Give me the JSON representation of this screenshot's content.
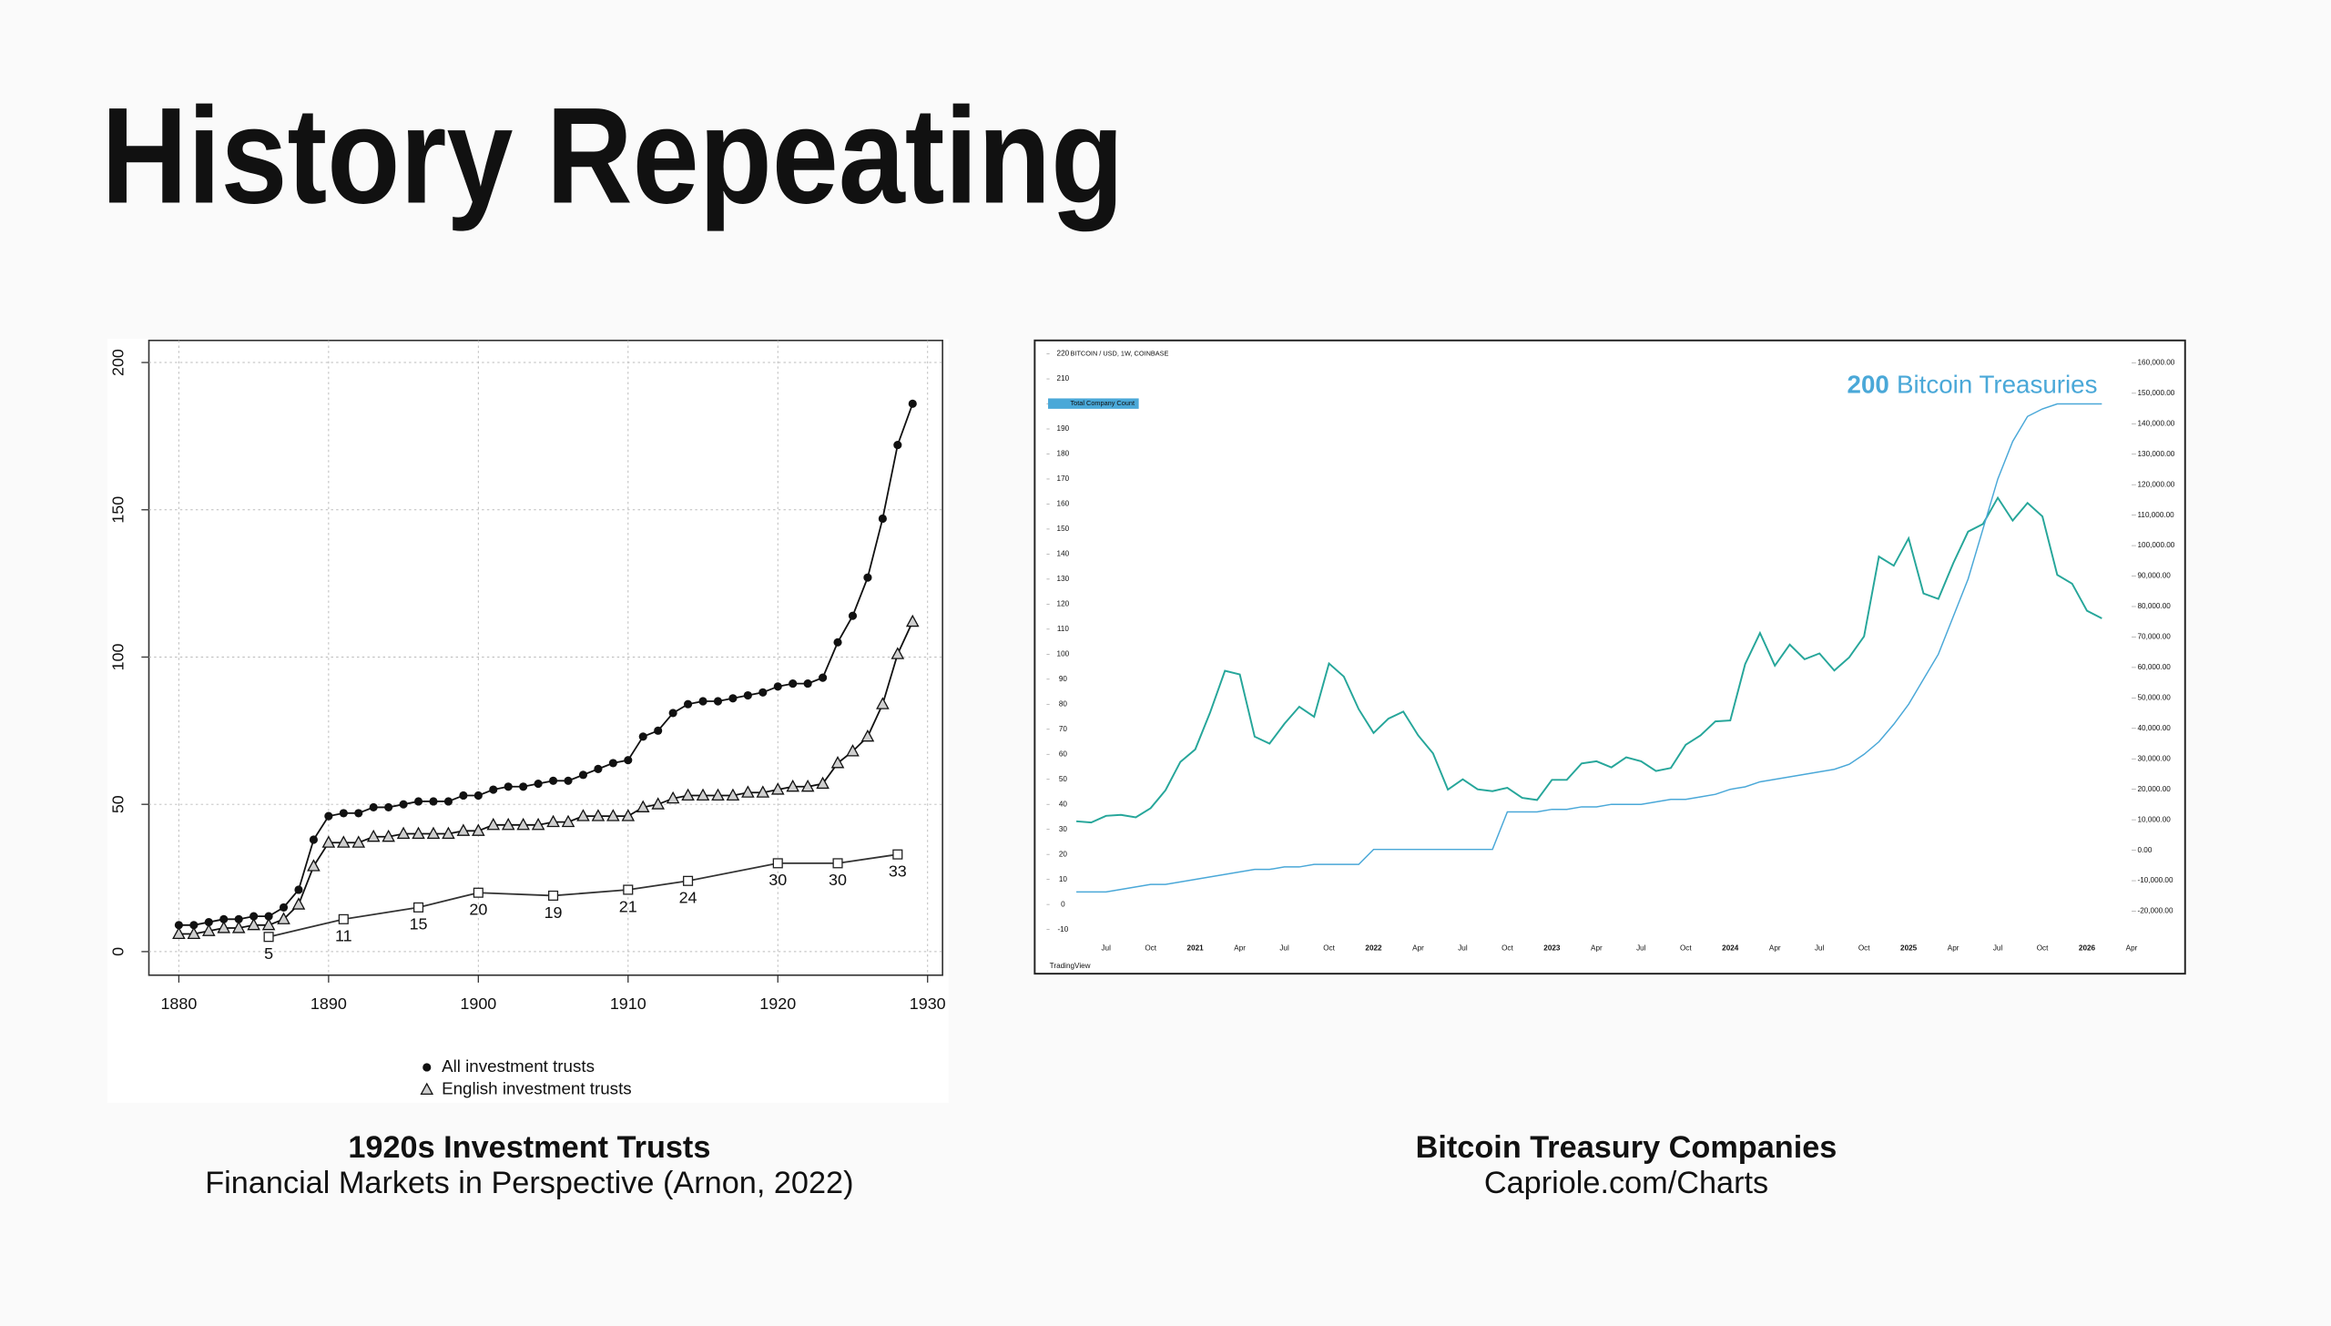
{
  "title": "History Repeating",
  "chart_data": [
    {
      "type": "line",
      "caption": "1920s Investment Trusts",
      "source": "Financial Markets in Perspective (Arnon, 2022)",
      "xlim": [
        1878,
        1931
      ],
      "xticks": [
        1880,
        1890,
        1900,
        1910,
        1920,
        1930
      ],
      "ylim": [
        -8,
        207.5
      ],
      "yticks": [
        0,
        50,
        100,
        150,
        200
      ],
      "grid": true,
      "series": [
        {
          "name": "All investment trusts",
          "color": "#111111",
          "marker": "circle",
          "x": [
            1880,
            1881,
            1882,
            1883,
            1884,
            1885,
            1886,
            1887,
            1888,
            1889,
            1890,
            1891,
            1892,
            1893,
            1894,
            1895,
            1896,
            1897,
            1898,
            1899,
            1900,
            1901,
            1902,
            1903,
            1904,
            1905,
            1906,
            1907,
            1908,
            1909,
            1910,
            1911,
            1912,
            1913,
            1914,
            1915,
            1916,
            1917,
            1918,
            1919,
            1920,
            1921,
            1922,
            1923,
            1924,
            1925,
            1926,
            1927,
            1928,
            1929
          ],
          "values": [
            9,
            9,
            10,
            11,
            11,
            12,
            12,
            15,
            21,
            38,
            46,
            47,
            47,
            49,
            49,
            50,
            51,
            51,
            51,
            53,
            53,
            55,
            56,
            56,
            57,
            58,
            58,
            60,
            62,
            64,
            65,
            73,
            75,
            81,
            84,
            85,
            85,
            86,
            87,
            88,
            90,
            91,
            91,
            93,
            105,
            114,
            127,
            147,
            172,
            186
          ]
        },
        {
          "name": "English investment trusts",
          "color": "#111111",
          "marker": "triangle",
          "x": [
            1880,
            1881,
            1882,
            1883,
            1884,
            1885,
            1886,
            1887,
            1888,
            1889,
            1890,
            1891,
            1892,
            1893,
            1894,
            1895,
            1896,
            1897,
            1898,
            1899,
            1900,
            1901,
            1902,
            1903,
            1904,
            1905,
            1906,
            1907,
            1908,
            1909,
            1910,
            1911,
            1912,
            1913,
            1914,
            1915,
            1916,
            1917,
            1918,
            1919,
            1920,
            1921,
            1922,
            1923,
            1924,
            1925,
            1926,
            1927,
            1928,
            1929
          ],
          "values": [
            6,
            6,
            7,
            8,
            8,
            9,
            9,
            11,
            16,
            29,
            37,
            37,
            37,
            39,
            39,
            40,
            40,
            40,
            40,
            41,
            41,
            43,
            43,
            43,
            43,
            44,
            44,
            46,
            46,
            46,
            46,
            49,
            50,
            52,
            53,
            53,
            53,
            53,
            54,
            54,
            55,
            56,
            56,
            57,
            64,
            68,
            73,
            84,
            101,
            112
          ]
        },
        {
          "color": "#333333",
          "marker": "square",
          "data_labels": true,
          "x": [
            1886,
            1891,
            1896,
            1900,
            1905,
            1910,
            1914,
            1920,
            1924,
            1928
          ],
          "values": [
            5,
            11,
            15,
            20,
            19,
            21,
            24,
            30,
            30,
            33
          ]
        }
      ]
    },
    {
      "type": "line",
      "caption": "Bitcoin Treasury Companies",
      "source": "Capriole.com/Charts",
      "annotation": {
        "value": 200,
        "text": "Bitcoin Treasuries"
      },
      "watermark": "TradingView",
      "categories": [
        null,
        null,
        "Jul",
        null,
        null,
        "Oct",
        null,
        null,
        "2021",
        null,
        null,
        "Apr",
        null,
        null,
        "Jul",
        null,
        null,
        "Oct",
        null,
        null,
        "2022",
        null,
        null,
        "Apr",
        null,
        null,
        "Jul",
        null,
        null,
        "Oct",
        null,
        null,
        "2023",
        null,
        null,
        "Apr",
        null,
        null,
        "Jul",
        null,
        null,
        "Oct",
        null,
        null,
        "2024",
        null,
        null,
        "Apr",
        null,
        null,
        "Jul",
        null,
        null,
        "Oct",
        null,
        null,
        "2025",
        null,
        null,
        "Apr",
        null,
        null,
        "Jul",
        null,
        null,
        "Oct",
        null,
        null,
        "2026",
        null,
        null,
        "Apr"
      ],
      "ylim": [
        -14,
        223
      ],
      "yticks": [
        220,
        210,
        200,
        190,
        180,
        170,
        160,
        150,
        140,
        130,
        120,
        110,
        100,
        90,
        80,
        70,
        60,
        50,
        40,
        30,
        20,
        10,
        0,
        -10
      ],
      "y2lim": [
        -29300,
        165400
      ],
      "y2ticks": [
        {
          "value": 160000,
          "label": "160,000.00"
        },
        {
          "value": 150000,
          "label": "150,000.00"
        },
        {
          "value": 140000,
          "label": "140,000.00"
        },
        {
          "value": 130000,
          "label": "130,000.00"
        },
        {
          "value": 120000,
          "label": "120,000.00"
        },
        {
          "value": 110000,
          "label": "110,000.00"
        },
        {
          "value": 100000,
          "label": "100,000.00"
        },
        {
          "value": 90000,
          "label": "90,000.00"
        },
        {
          "value": 80000,
          "label": "80,000.00"
        },
        {
          "value": 70000,
          "label": "70,000.00"
        },
        {
          "value": 60000,
          "label": "60,000.00"
        },
        {
          "value": 50000,
          "label": "50,000.00"
        },
        {
          "value": 40000,
          "label": "40,000.00"
        },
        {
          "value": 30000,
          "label": "30,000.00"
        },
        {
          "value": 20000,
          "label": "20,000.00"
        },
        {
          "value": 10000,
          "label": "10,000.00"
        },
        {
          "value": 0,
          "label": "0.00"
        },
        {
          "value": -10000,
          "label": "-10,000.00"
        },
        {
          "value": -20000,
          "label": "-20,000.00"
        }
      ],
      "series": [
        {
          "name": "BITCOIN / USD, 1W, COINBASE",
          "color": "#26a69a",
          "axis": "y2",
          "values": [
            9500,
            9100,
            11300,
            11600,
            10800,
            13800,
            19700,
            29000,
            33100,
            45200,
            58900,
            57700,
            37300,
            35000,
            41500,
            47100,
            43800,
            61300,
            57000,
            46300,
            38500,
            43200,
            45500,
            37700,
            31800,
            19900,
            23300,
            20000,
            19400,
            20500,
            17200,
            16500,
            23100,
            23100,
            28500,
            29200,
            27200,
            30500,
            29200,
            26000,
            27000,
            34600,
            37700,
            42300,
            42600,
            61100,
            71300,
            60600,
            67500,
            62700,
            64600,
            59000,
            63300,
            70200,
            96400,
            93400,
            102400,
            84300,
            82500,
            94200,
            104600,
            107100,
            115700,
            108200,
            114000,
            109600,
            90400,
            87500,
            78600,
            76100,
            null,
            null
          ]
        },
        {
          "name": "Total Company Count",
          "color": "#4aa8d8",
          "values": [
            5,
            5,
            5,
            6,
            7,
            8,
            8,
            9,
            10,
            11,
            12,
            13,
            14,
            14,
            15,
            15,
            16,
            16,
            16,
            16,
            22,
            22,
            22,
            22,
            22,
            22,
            22,
            22,
            22,
            37,
            37,
            37,
            38,
            38,
            39,
            39,
            40,
            40,
            40,
            41,
            42,
            42,
            43,
            44,
            46,
            47,
            49,
            50,
            51,
            52,
            53,
            54,
            56,
            60,
            65,
            72,
            80,
            90,
            100,
            115,
            130,
            150,
            170,
            185,
            195,
            198,
            200,
            200,
            200,
            200,
            null,
            null
          ]
        }
      ]
    }
  ]
}
